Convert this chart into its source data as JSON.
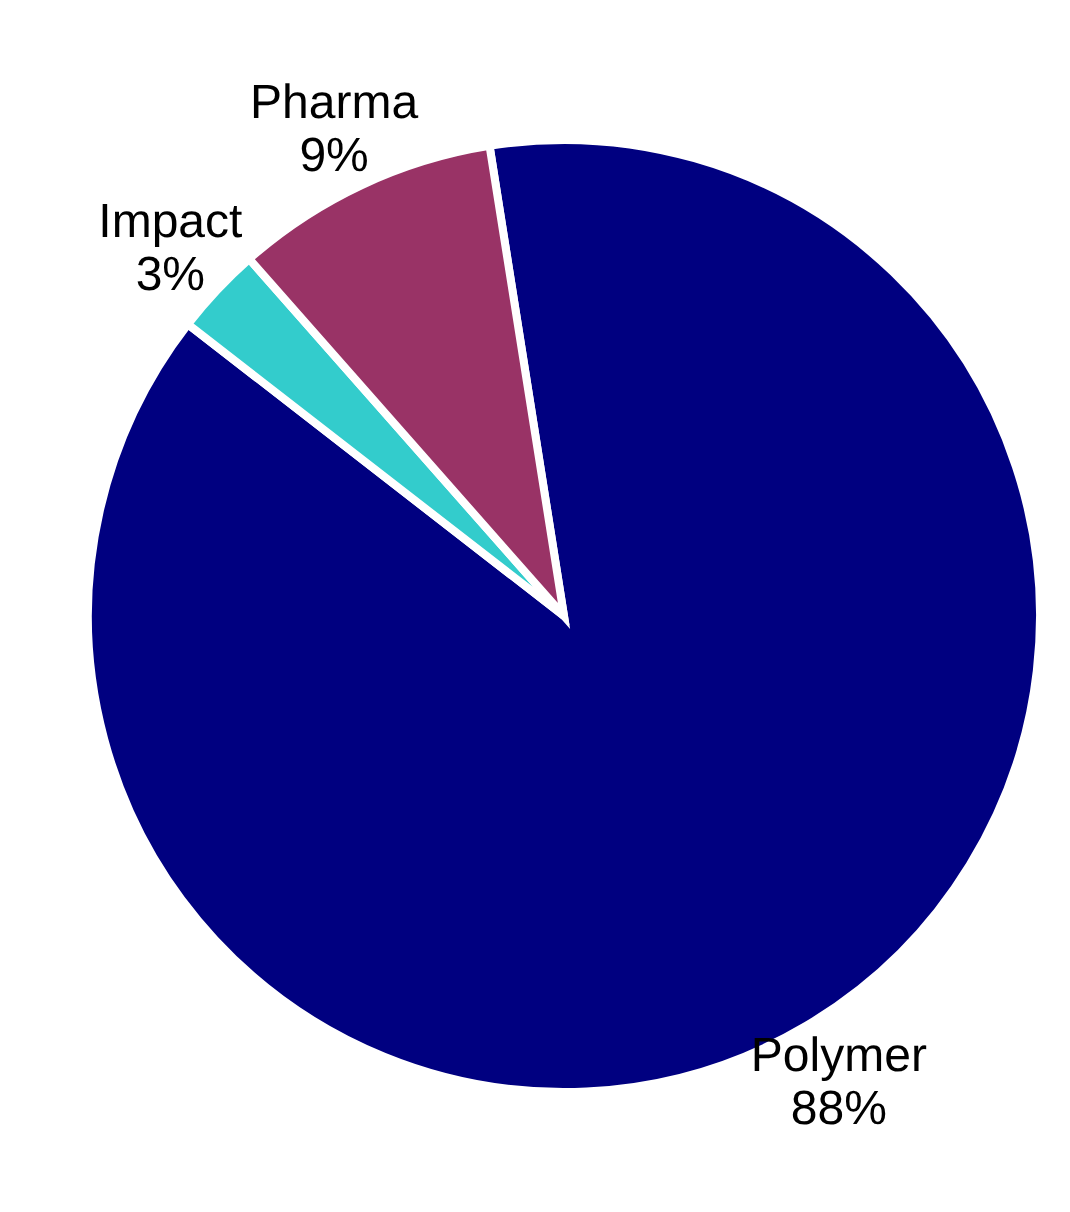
{
  "chart_data": {
    "type": "pie",
    "categories": [
      "Polymer",
      "Impact",
      "Pharma"
    ],
    "values": [
      88,
      3,
      9
    ],
    "colors": [
      "#000080",
      "#33cccc",
      "#993366"
    ],
    "value_labels": [
      "88%",
      "3%",
      "9%"
    ]
  }
}
